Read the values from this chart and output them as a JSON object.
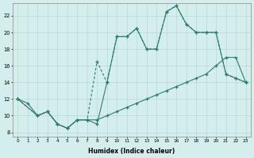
{
  "bg_color": "#d4eeee",
  "grid_color": "#b8d8d8",
  "line_color": "#2d7b6e",
  "xlabel": "Humidex (Indice chaleur)",
  "xlim": [
    -0.5,
    23.5
  ],
  "ylim": [
    7.5,
    23.5
  ],
  "yticks": [
    8,
    10,
    12,
    14,
    16,
    18,
    20,
    22
  ],
  "xticks": [
    0,
    1,
    2,
    3,
    4,
    5,
    6,
    7,
    8,
    9,
    10,
    11,
    12,
    13,
    14,
    15,
    16,
    17,
    18,
    19,
    20,
    21,
    22,
    23
  ],
  "line1_x": [
    0,
    1,
    2,
    3,
    4,
    5,
    6,
    7,
    8,
    9,
    10,
    11,
    12,
    13,
    14,
    15,
    16,
    17,
    18,
    19,
    20,
    21,
    22,
    23
  ],
  "line1_y": [
    12,
    11.5,
    10,
    10.5,
    9,
    8.5,
    9.5,
    9.5,
    9.5,
    10,
    10.5,
    11,
    11.5,
    12,
    12.5,
    13,
    13.5,
    14,
    14.5,
    15,
    16,
    17,
    17,
    14
  ],
  "line2_x": [
    0,
    2,
    3,
    4,
    5,
    6,
    7,
    8,
    9,
    10,
    11,
    12,
    13,
    14,
    15,
    16,
    17,
    18,
    19,
    20,
    21,
    22,
    23
  ],
  "line2_y": [
    12,
    10,
    10.5,
    9,
    8.5,
    9.5,
    9.5,
    16.5,
    14,
    19.5,
    19.5,
    20.5,
    18,
    18,
    22.5,
    23.2,
    21,
    20,
    20,
    20,
    15,
    14.5,
    14
  ],
  "line3_x": [
    0,
    2,
    3,
    4,
    5,
    6,
    7,
    8,
    9,
    10,
    11,
    12,
    13,
    14,
    15,
    16,
    17,
    18,
    19,
    20,
    21,
    22,
    23
  ],
  "line3_y": [
    12,
    10,
    10.5,
    9,
    8.5,
    9.5,
    9.5,
    9,
    14,
    19.5,
    19.5,
    20.5,
    18,
    18,
    22.5,
    23.2,
    21,
    20,
    20,
    20,
    15,
    14.5,
    14
  ]
}
